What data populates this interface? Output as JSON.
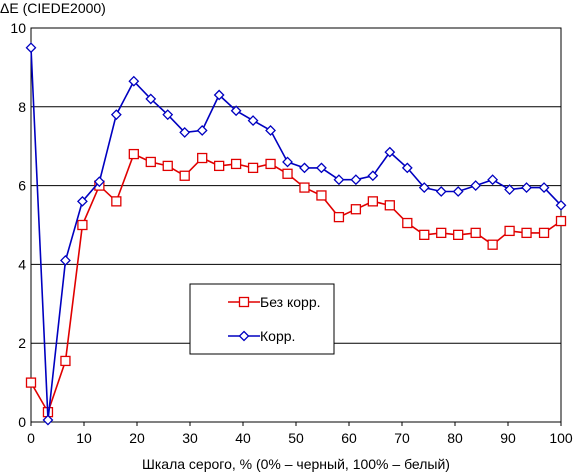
{
  "chart_data": {
    "type": "line",
    "title": "",
    "ylabel": "ΔE (CIEDE2000)",
    "xlabel": "Шкала серого, % (0% – черный, 100% – белый)",
    "xlim": [
      0,
      100
    ],
    "ylim": [
      0,
      10
    ],
    "x_ticks": [
      0,
      10,
      20,
      30,
      40,
      50,
      60,
      70,
      80,
      90,
      100
    ],
    "y_ticks": [
      0,
      2,
      4,
      6,
      8,
      10
    ],
    "grid": "horizontal",
    "legend_placement": "center-left",
    "x": [
      0,
      3.2,
      6.5,
      9.7,
      12.9,
      16.1,
      19.4,
      22.6,
      25.8,
      29.0,
      32.3,
      35.5,
      38.7,
      41.9,
      45.2,
      48.4,
      51.6,
      54.8,
      58.1,
      61.3,
      64.5,
      67.7,
      71.0,
      74.2,
      77.4,
      80.6,
      83.9,
      87.1,
      90.3,
      93.5,
      96.8,
      100
    ],
    "series": [
      {
        "name": "Без корр.",
        "color": "#e00000",
        "marker": "square",
        "values": [
          1.0,
          0.25,
          1.55,
          5.0,
          6.0,
          5.6,
          6.8,
          6.6,
          6.5,
          6.25,
          6.7,
          6.5,
          6.55,
          6.45,
          6.55,
          6.3,
          5.95,
          5.75,
          5.2,
          5.4,
          5.6,
          5.5,
          5.05,
          4.75,
          4.8,
          4.75,
          4.8,
          4.5,
          4.85,
          4.8,
          4.8,
          5.1
        ]
      },
      {
        "name": "Корр.",
        "color": "#0000c0",
        "marker": "diamond",
        "values": [
          9.5,
          0.05,
          4.1,
          5.6,
          6.1,
          7.8,
          8.65,
          8.2,
          7.8,
          7.35,
          7.4,
          8.3,
          7.9,
          7.65,
          7.4,
          6.6,
          6.45,
          6.45,
          6.15,
          6.15,
          6.25,
          6.85,
          6.45,
          5.95,
          5.85,
          5.85,
          6.0,
          6.15,
          5.9,
          5.95,
          5.95,
          5.5
        ]
      }
    ]
  }
}
